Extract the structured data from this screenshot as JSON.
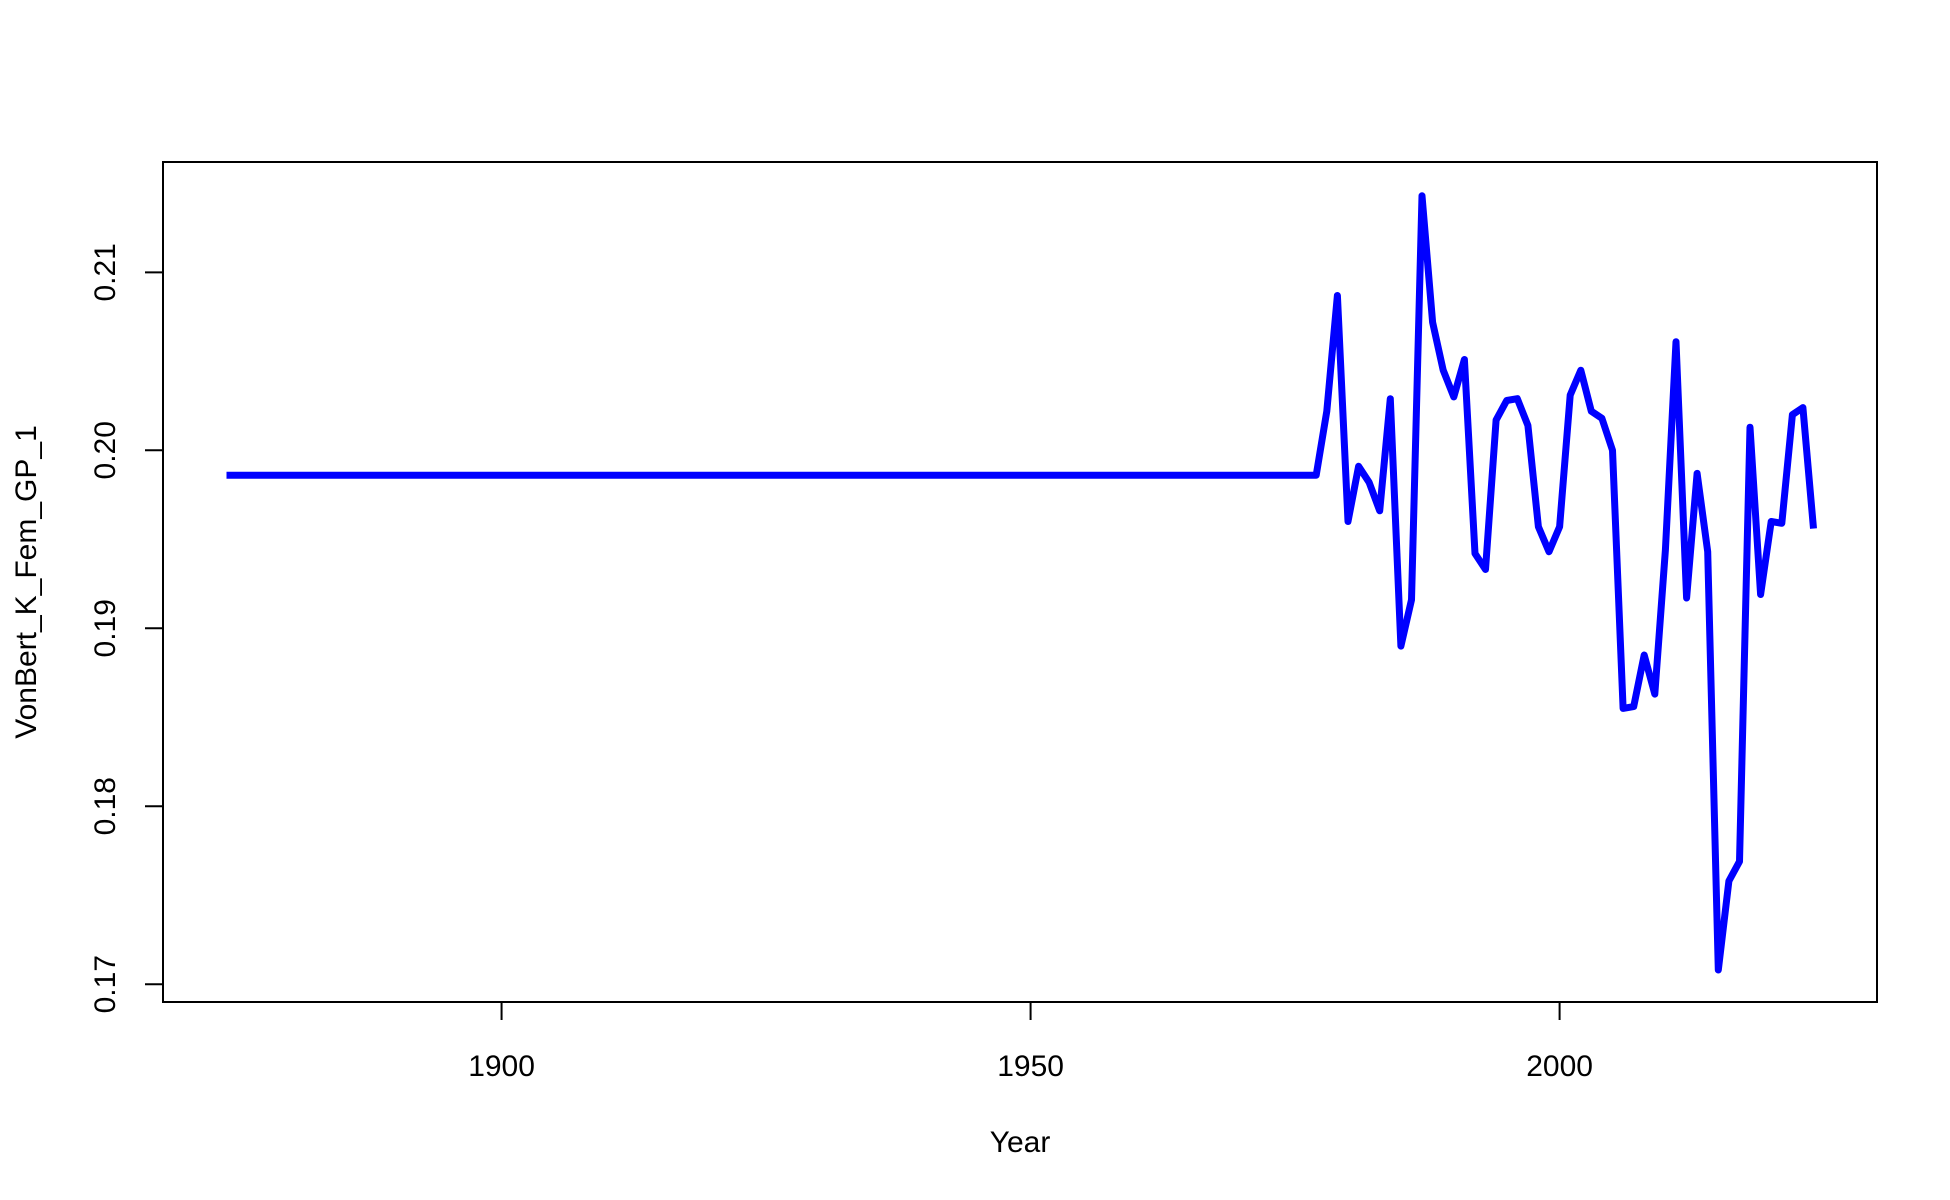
{
  "chart_data": {
    "type": "line",
    "title": "",
    "xlabel": "Year",
    "ylabel": "VonBert_K_Fem_GP_1",
    "xlim": [
      1868,
      2030
    ],
    "ylim": [
      0.169,
      0.2162
    ],
    "x_ticks": [
      1900,
      1950,
      2000
    ],
    "x_tick_labels": [
      "1900",
      "1950",
      "2000"
    ],
    "y_ticks": [
      0.17,
      0.18,
      0.19,
      0.2,
      0.21
    ],
    "y_tick_labels": [
      "0.17",
      "0.18",
      "0.19",
      "0.20",
      "0.21"
    ],
    "grid": false,
    "legend": "none",
    "series": [
      {
        "color": "#0000ff",
        "x": [
          1874,
          1977,
          1978,
          1979,
          1980,
          1981,
          1982,
          1983,
          1984,
          1985,
          1986,
          1987,
          1988,
          1989,
          1990,
          1991,
          1992,
          1993,
          1994,
          1995,
          1996,
          1997,
          1998,
          1999,
          2000,
          2001,
          2002,
          2003,
          2004,
          2005,
          2006,
          2007,
          2008,
          2009,
          2010,
          2011,
          2012,
          2013,
          2014,
          2015,
          2016,
          2017,
          2018,
          2019,
          2020,
          2021,
          2022,
          2023,
          2024
        ],
        "y": [
          0.1986,
          0.1986,
          0.2022,
          0.2087,
          0.196,
          0.1991,
          0.1982,
          0.1966,
          0.2029,
          0.189,
          0.1916,
          0.2143,
          0.2072,
          0.2045,
          0.203,
          0.2051,
          0.1942,
          0.1933,
          0.2017,
          0.2028,
          0.2029,
          0.2014,
          0.1957,
          0.1943,
          0.1957,
          0.2031,
          0.2045,
          0.2022,
          0.2018,
          0.2,
          0.1855,
          0.1856,
          0.1885,
          0.1863,
          0.1944,
          0.2061,
          0.1917,
          0.1987,
          0.1943,
          0.1708,
          0.1758,
          0.1769,
          0.2013,
          0.1919,
          0.196,
          0.1959,
          0.202,
          0.2024,
          0.1956
        ]
      }
    ]
  }
}
